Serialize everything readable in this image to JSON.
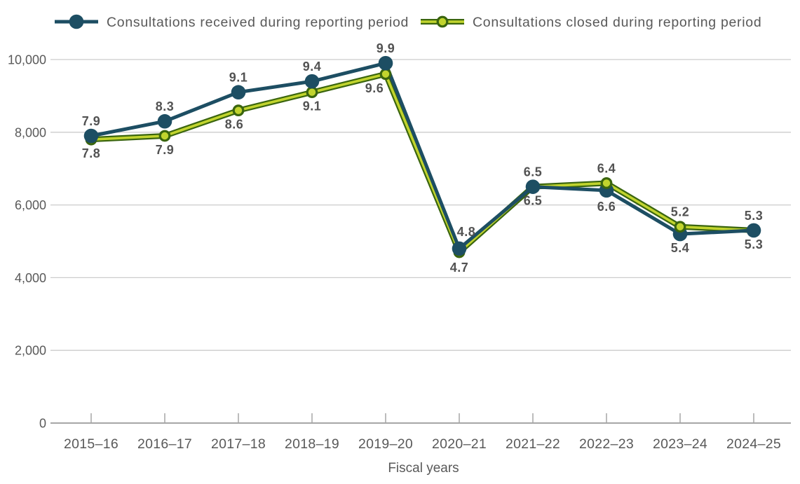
{
  "chart_data": {
    "type": "line",
    "title": "",
    "xlabel": "Fiscal years",
    "ylabel": "",
    "categories": [
      "2015–16",
      "2016–17",
      "2017–18",
      "2018–19",
      "2019–20",
      "2020–21",
      "2021–22",
      "2022–23",
      "2023–24",
      "2024–25"
    ],
    "y_tick_labels": [
      "10,000",
      "8,000",
      "6,000",
      "4,000",
      "2,000",
      "0"
    ],
    "y_tick_values": [
      10000,
      8000,
      6000,
      4000,
      2000,
      0
    ],
    "ylim": [
      0,
      10000
    ],
    "values_unit": "thousands",
    "grid": "horizontal",
    "legend_position": "top",
    "series": [
      {
        "name": "Consultations received during reporting period",
        "color": "#1d4e63",
        "values": [
          7.9,
          8.3,
          9.1,
          9.4,
          9.9,
          4.8,
          6.5,
          6.4,
          5.2,
          5.3
        ],
        "label_position": "above",
        "label_dx": [
          0,
          0,
          0,
          0,
          0,
          10,
          0,
          0,
          0,
          0
        ],
        "label_dy": [
          0,
          0,
          0,
          0,
          0,
          -3,
          0,
          0,
          0,
          0
        ]
      },
      {
        "name": "Consultations closed during reporting period",
        "color": "#c1d42e",
        "edge_color": "#3a650e",
        "values": [
          7.8,
          7.9,
          8.6,
          9.1,
          9.6,
          4.7,
          6.5,
          6.6,
          5.4,
          5.3
        ],
        "label_position": "below",
        "label_dx": [
          0,
          0,
          -6,
          0,
          -16,
          0,
          0,
          0,
          0,
          0
        ],
        "label_dy": [
          0,
          0,
          0,
          0,
          0,
          2,
          0,
          3,
          0,
          0
        ]
      }
    ]
  },
  "colors": {
    "label_text": "#525252",
    "axis_text": "#595959",
    "grid_line": "#cccccc",
    "axis_line": "#a6a6a6"
  }
}
